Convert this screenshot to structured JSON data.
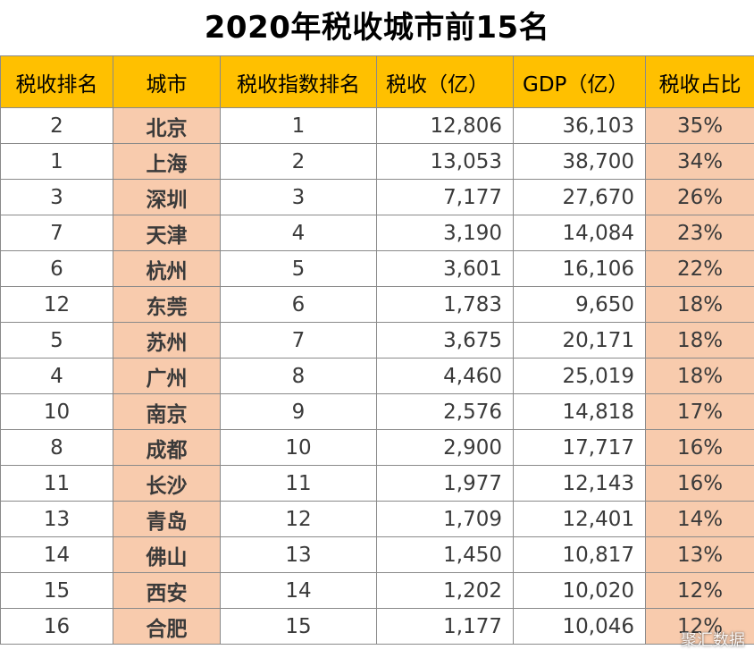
{
  "title": "2020年税收城市前15名",
  "columns": [
    "税收排名",
    "城市",
    "税收指数排名",
    "税收（亿）",
    "GDP（亿）",
    "税收占比"
  ],
  "rows": [
    {
      "tax_rank": "2",
      "city": "北京",
      "index_rank": "1",
      "tax": "12,806",
      "gdp": "36,103",
      "ratio": "35%"
    },
    {
      "tax_rank": "1",
      "city": "上海",
      "index_rank": "2",
      "tax": "13,053",
      "gdp": "38,700",
      "ratio": "34%"
    },
    {
      "tax_rank": "3",
      "city": "深圳",
      "index_rank": "3",
      "tax": "7,177",
      "gdp": "27,670",
      "ratio": "26%"
    },
    {
      "tax_rank": "7",
      "city": "天津",
      "index_rank": "4",
      "tax": "3,190",
      "gdp": "14,084",
      "ratio": "23%"
    },
    {
      "tax_rank": "6",
      "city": "杭州",
      "index_rank": "5",
      "tax": "3,601",
      "gdp": "16,106",
      "ratio": "22%"
    },
    {
      "tax_rank": "12",
      "city": "东莞",
      "index_rank": "6",
      "tax": "1,783",
      "gdp": "9,650",
      "ratio": "18%"
    },
    {
      "tax_rank": "5",
      "city": "苏州",
      "index_rank": "7",
      "tax": "3,675",
      "gdp": "20,171",
      "ratio": "18%"
    },
    {
      "tax_rank": "4",
      "city": "广州",
      "index_rank": "8",
      "tax": "4,460",
      "gdp": "25,019",
      "ratio": "18%"
    },
    {
      "tax_rank": "10",
      "city": "南京",
      "index_rank": "9",
      "tax": "2,576",
      "gdp": "14,818",
      "ratio": "17%"
    },
    {
      "tax_rank": "8",
      "city": "成都",
      "index_rank": "10",
      "tax": "2,900",
      "gdp": "17,717",
      "ratio": "16%"
    },
    {
      "tax_rank": "11",
      "city": "长沙",
      "index_rank": "11",
      "tax": "1,977",
      "gdp": "12,143",
      "ratio": "16%"
    },
    {
      "tax_rank": "13",
      "city": "青岛",
      "index_rank": "12",
      "tax": "1,709",
      "gdp": "12,401",
      "ratio": "14%"
    },
    {
      "tax_rank": "14",
      "city": "佛山",
      "index_rank": "13",
      "tax": "1,450",
      "gdp": "10,817",
      "ratio": "13%"
    },
    {
      "tax_rank": "15",
      "city": "西安",
      "index_rank": "14",
      "tax": "1,202",
      "gdp": "10,020",
      "ratio": "12%"
    },
    {
      "tax_rank": "16",
      "city": "合肥",
      "index_rank": "15",
      "tax": "1,177",
      "gdp": "10,046",
      "ratio": "12%"
    }
  ],
  "watermark": "聚汇数据",
  "colors": {
    "header_bg": "#ffc000",
    "highlight_bg": "#f8cbad"
  }
}
